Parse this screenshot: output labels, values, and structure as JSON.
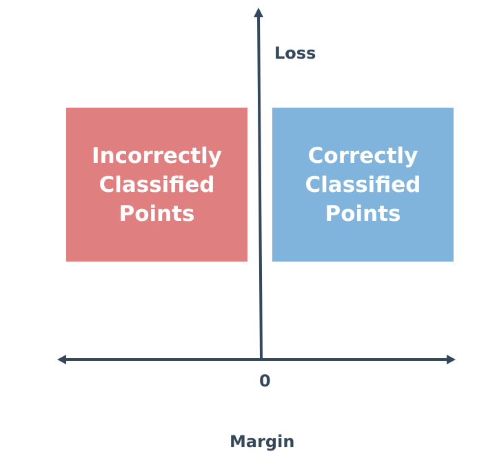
{
  "boxes": {
    "left": {
      "text": "Incorrectly\nClassified\nPoints",
      "color": "#df7f7f"
    },
    "right": {
      "text": "Correctly\nClassified\nPoints",
      "color": "#80b4dc"
    }
  },
  "axes": {
    "y_label": "Loss",
    "origin_label": "0",
    "x_label": "Margin",
    "color": "#34475b"
  }
}
